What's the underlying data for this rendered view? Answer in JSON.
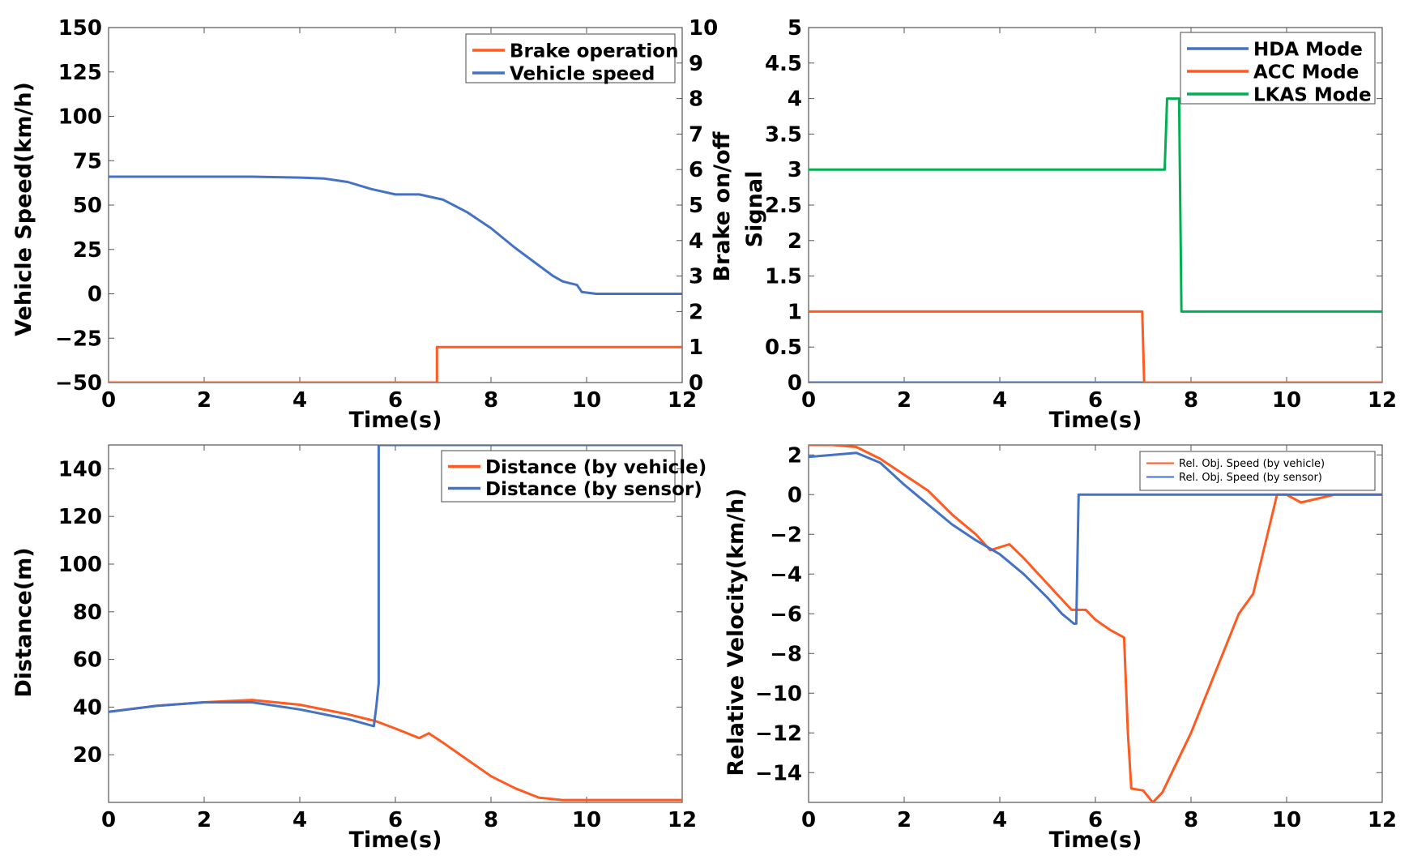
{
  "colors": {
    "orange": "#ff5a1f",
    "blue": "#4472c4",
    "green": "#00b050",
    "frame": "#000000",
    "grid": "#7f7f7f"
  },
  "chart_data": [
    {
      "type": "line",
      "xlabel": "Time(s)",
      "ylabel": "Vehicle Speed(km/h)",
      "y2label": "Brake on/off",
      "xlim": [
        0,
        12
      ],
      "ylim": [
        -50,
        150
      ],
      "y2lim": [
        0,
        10
      ],
      "xticks": [
        0,
        2,
        4,
        6,
        8,
        10,
        12
      ],
      "yticks": [
        -50,
        -25,
        0,
        25,
        50,
        75,
        100,
        125,
        150
      ],
      "y2ticks": [
        0,
        1,
        2,
        3,
        4,
        5,
        6,
        7,
        8,
        9,
        10
      ],
      "ytick_labels": [
        "−50",
        "−25",
        "0",
        "25",
        "50",
        "75",
        "100",
        "125",
        "150"
      ],
      "legend_placement": "top-right",
      "grid": false,
      "series": [
        {
          "name": "Brake operation",
          "axis": "y2",
          "color": "orange",
          "x": [
            0,
            6.87,
            6.87,
            12
          ],
          "y": [
            0,
            0,
            1,
            1
          ]
        },
        {
          "name": "Vehicle speed",
          "axis": "y",
          "color": "blue",
          "x": [
            0,
            1,
            2,
            3,
            4,
            4.5,
            5,
            5.5,
            6,
            6.5,
            7,
            7.5,
            8,
            8.5,
            9,
            9.3,
            9.5,
            9.65,
            9.8,
            9.9,
            10.2,
            12
          ],
          "y": [
            66,
            66,
            66,
            66,
            65.5,
            65,
            63,
            59,
            56,
            56,
            53,
            46,
            37,
            26,
            16,
            10,
            7,
            6,
            5,
            1,
            0,
            0
          ]
        }
      ]
    },
    {
      "type": "line",
      "xlabel": "Time(s)",
      "ylabel": "Signal",
      "xlim": [
        0,
        12
      ],
      "ylim": [
        0,
        5
      ],
      "xticks": [
        0,
        2,
        4,
        6,
        8,
        10,
        12
      ],
      "yticks": [
        0,
        0.5,
        1,
        1.5,
        2,
        2.5,
        3,
        3.5,
        4,
        4.5,
        5
      ],
      "ytick_labels": [
        "0",
        "0.5",
        "1",
        "1.5",
        "2",
        "2.5",
        "3",
        "3.5",
        "4",
        "4.5",
        "5"
      ],
      "legend_placement": "top-right",
      "grid": false,
      "series": [
        {
          "name": "HDA Mode",
          "color": "blue",
          "x": [
            0,
            12
          ],
          "y": [
            0,
            0
          ]
        },
        {
          "name": "ACC Mode",
          "color": "orange",
          "x": [
            0,
            6.98,
            7.02,
            12
          ],
          "y": [
            1,
            1,
            0,
            0
          ]
        },
        {
          "name": "LKAS Mode",
          "color": "green",
          "x": [
            0,
            7.45,
            7.5,
            7.75,
            7.8,
            12
          ],
          "y": [
            3,
            3,
            4,
            4,
            1,
            1
          ]
        }
      ]
    },
    {
      "type": "line",
      "xlabel": "Time(s)",
      "ylabel": "Distance(m)",
      "xlim": [
        0,
        12
      ],
      "ylim": [
        0,
        150
      ],
      "xticks": [
        0,
        2,
        4,
        6,
        8,
        10,
        12
      ],
      "yticks": [
        20,
        40,
        60,
        80,
        100,
        120,
        140
      ],
      "ytick_labels": [
        "20",
        "40",
        "60",
        "80",
        "100",
        "120",
        "140"
      ],
      "legend_placement": "top-right",
      "grid": false,
      "series": [
        {
          "name": "Distance (by vehicle)",
          "color": "orange",
          "x": [
            0,
            1,
            2,
            3,
            4,
            5,
            5.6,
            6,
            6.5,
            6.7,
            7,
            7.5,
            8,
            8.5,
            9,
            9.5,
            10,
            11,
            12
          ],
          "y": [
            38,
            40.5,
            42,
            43,
            41,
            37,
            34,
            31,
            27,
            29,
            25,
            18,
            11,
            6,
            2,
            1,
            1,
            1,
            1
          ]
        },
        {
          "name": "Distance (by sensor)",
          "color": "blue",
          "x": [
            0,
            1,
            2,
            3,
            4,
            5,
            5.55,
            5.6,
            5.65,
            5.65,
            12
          ],
          "y": [
            38,
            40.5,
            42,
            42,
            39,
            35,
            32,
            40,
            50,
            150,
            150
          ]
        }
      ]
    },
    {
      "type": "line",
      "xlabel": "Time(s)",
      "ylabel": "Relative Velocity(km/h)",
      "xlim": [
        0,
        12
      ],
      "ylim": [
        -15.5,
        2.5
      ],
      "xticks": [
        0,
        2,
        4,
        6,
        8,
        10,
        12
      ],
      "yticks": [
        -14,
        -12,
        -10,
        -8,
        -6,
        -4,
        -2,
        0,
        2
      ],
      "ytick_labels": [
        "−14",
        "−12",
        "−10",
        "−8",
        "−6",
        "−4",
        "−2",
        "0",
        "2"
      ],
      "legend_placement": "top-right",
      "grid": false,
      "series": [
        {
          "name": "Rel. Obj. Speed (by vehicle)",
          "color": "orange",
          "x": [
            0,
            0.5,
            1,
            1.5,
            2,
            2.5,
            3,
            3.5,
            3.8,
            4.2,
            4.5,
            5,
            5.5,
            5.8,
            6,
            6.3,
            6.6,
            6.68,
            6.75,
            7,
            7.2,
            7.4,
            7.6,
            8,
            8.5,
            9,
            9.3,
            9.6,
            9.8,
            10,
            10.3,
            11,
            11.5,
            12
          ],
          "y": [
            2.5,
            2.5,
            2.4,
            1.8,
            1,
            0.2,
            -1,
            -2,
            -2.8,
            -2.5,
            -3.2,
            -4.5,
            -5.8,
            -5.8,
            -6.3,
            -6.8,
            -7.2,
            -12,
            -14.8,
            -14.9,
            -15.5,
            -15,
            -14,
            -12,
            -9,
            -6,
            -5,
            -2,
            0,
            0,
            -0.4,
            0,
            0,
            0
          ]
        },
        {
          "name": "Rel. Obj. Speed (by sensor)",
          "color": "blue",
          "x": [
            0,
            0.5,
            1,
            1.5,
            2,
            2.5,
            3,
            3.5,
            4,
            4.5,
            5,
            5.3,
            5.55,
            5.6,
            5.65,
            12
          ],
          "y": [
            1.9,
            2,
            2.1,
            1.6,
            0.5,
            -0.5,
            -1.5,
            -2.3,
            -3,
            -4,
            -5.2,
            -6,
            -6.5,
            -6.5,
            0,
            0
          ]
        }
      ]
    }
  ]
}
